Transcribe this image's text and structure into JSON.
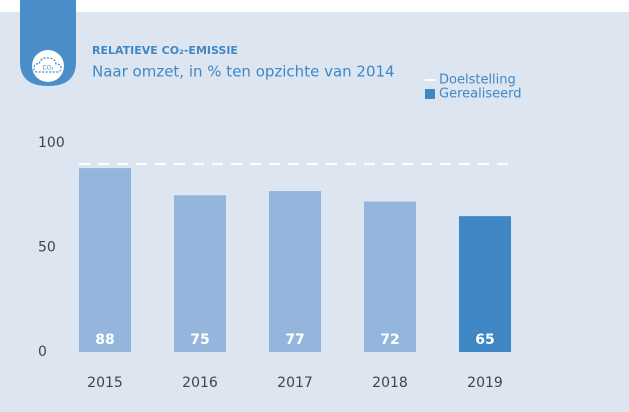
{
  "chart_data": {
    "type": "bar",
    "title": "RELATIEVE CO₂-EMISSIE",
    "subtitle": "Naar omzet, in % ten opzichte van 2014",
    "categories": [
      "2015",
      "2016",
      "2017",
      "2018",
      "2019"
    ],
    "values": [
      88,
      75,
      77,
      72,
      65
    ],
    "colors": [
      "#94b6dd",
      "#94b6dd",
      "#94b6dd",
      "#94b6dd",
      "#3f88c5"
    ],
    "target": {
      "name": "Doelstelling",
      "value": 90,
      "color": "#ffffff"
    },
    "legend": [
      {
        "name": "Doelstelling",
        "color": "#ffffff"
      },
      {
        "name": "Gerealiseerd",
        "color": "#3f88c5"
      }
    ],
    "ylim": [
      0,
      100
    ],
    "yticks": [
      0,
      50,
      100
    ],
    "grid": false
  }
}
